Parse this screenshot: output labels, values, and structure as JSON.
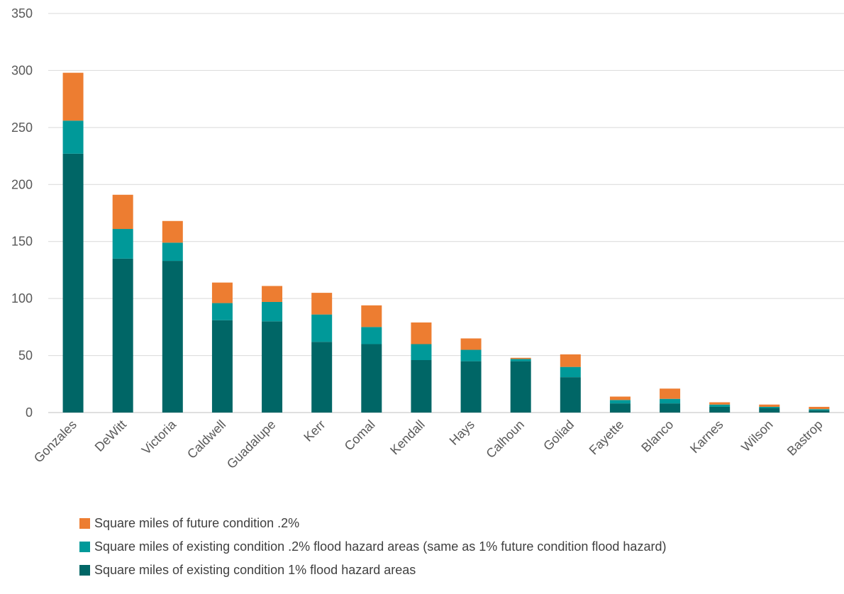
{
  "chart_data": {
    "type": "bar",
    "stacked": true,
    "title": "",
    "xlabel": "",
    "ylabel": "",
    "ylim": [
      0,
      350
    ],
    "yticks": [
      0,
      50,
      100,
      150,
      200,
      250,
      300,
      350
    ],
    "grid": true,
    "legend_position": "bottom",
    "categories": [
      "Gonzales",
      "DeWitt",
      "Victoria",
      "Caldwell",
      "Guadalupe",
      "Kerr",
      "Comal",
      "Kendall",
      "Hays",
      "Calhoun",
      "Goliad",
      "Fayette",
      "Blanco",
      "Karnes",
      "Wilson",
      "Bastrop"
    ],
    "series": [
      {
        "name": "Square miles of existing condition 1% flood hazard areas",
        "color": "#006666",
        "values": [
          227,
          135,
          133,
          81,
          80,
          62,
          60,
          46,
          45,
          45,
          31,
          8,
          8,
          5,
          4,
          2
        ]
      },
      {
        "name": "Square miles of existing condition .2% flood hazard areas (same as 1% future condition flood hazard)",
        "color": "#009999",
        "values": [
          29,
          26,
          16,
          15,
          17,
          24,
          15,
          14,
          10,
          2,
          9,
          3,
          4,
          2,
          1,
          1
        ]
      },
      {
        "name": "Square miles of future condition .2%",
        "color": "#ED7D31",
        "values": [
          42,
          30,
          19,
          18,
          14,
          19,
          19,
          19,
          10,
          1,
          11,
          3,
          9,
          2,
          2,
          2
        ]
      }
    ]
  },
  "legend": {
    "items": [
      {
        "label": "Square miles of future condition .2%",
        "color": "#ED7D31"
      },
      {
        "label": "Square miles of existing condition .2% flood hazard areas (same as 1% future condition flood hazard)",
        "color": "#009999"
      },
      {
        "label": "Square miles of existing condition 1% flood hazard areas",
        "color": "#006666"
      }
    ]
  }
}
